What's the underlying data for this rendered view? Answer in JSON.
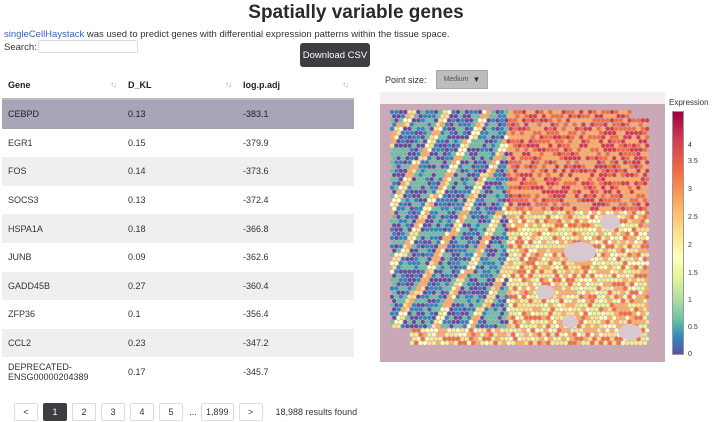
{
  "page_title": "Spatially variable genes",
  "intro": {
    "link_text": "singleCellHaystack",
    "text": " was used to predict genes with differential expression patterns within the tissue space."
  },
  "search": {
    "label": "Search:",
    "value": ""
  },
  "download_button": "Download CSV",
  "table": {
    "columns": [
      "Gene",
      "D_KL",
      "log.p.adj"
    ],
    "rows": [
      {
        "gene": "CEBPD",
        "dkl": "0.13",
        "logp": "-383.1"
      },
      {
        "gene": "EGR1",
        "dkl": "0.15",
        "logp": "-379.9"
      },
      {
        "gene": "FOS",
        "dkl": "0.14",
        "logp": "-373.6"
      },
      {
        "gene": "SOCS3",
        "dkl": "0.13",
        "logp": "-372.4"
      },
      {
        "gene": "HSPA1A",
        "dkl": "0.18",
        "logp": "-366.8"
      },
      {
        "gene": "JUNB",
        "dkl": "0.09",
        "logp": "-362.6"
      },
      {
        "gene": "GADD45B",
        "dkl": "0.27",
        "logp": "-360.4"
      },
      {
        "gene": "ZFP36",
        "dkl": "0.1",
        "logp": "-356.4"
      },
      {
        "gene": "CCL2",
        "dkl": "0.23",
        "logp": "-347.2"
      },
      {
        "gene": "DEPRECATED-ENSG00000204389",
        "dkl": "0.17",
        "logp": "-345.7"
      }
    ]
  },
  "pagination": {
    "prev": "<",
    "pages": [
      "1",
      "2",
      "3",
      "4",
      "5"
    ],
    "ellipsis": "...",
    "last": "1,899",
    "next": ">",
    "results": "18,988 results found"
  },
  "point_size": {
    "label": "Point size:",
    "value": "Medium"
  },
  "legend": {
    "title": "Expression",
    "ticks": [
      "4",
      "3.5",
      "3",
      "2.5",
      "2",
      "1.5",
      "1",
      "0.5",
      "0"
    ]
  },
  "colors": {
    "selected_row": "#a9a4b8",
    "button_dark": "#3e3e42",
    "link": "#3a63b8"
  }
}
